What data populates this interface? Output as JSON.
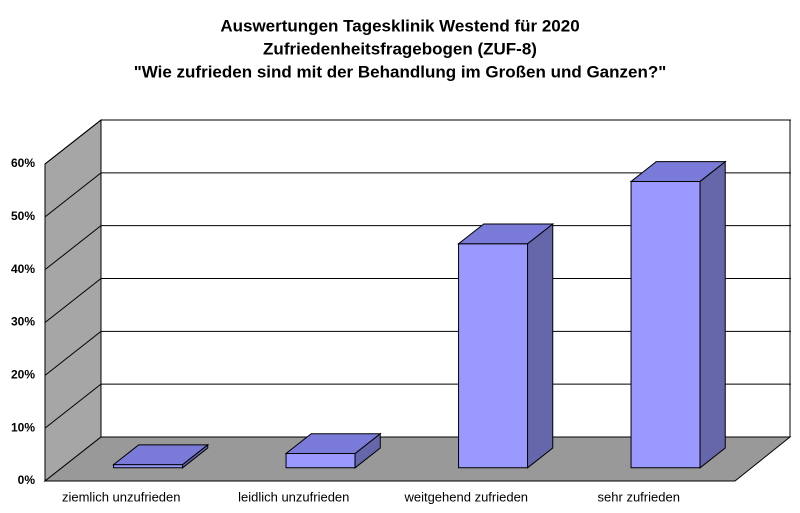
{
  "chart_data": {
    "type": "bar3d",
    "title": [
      "Auswertungen Tagesklinik Westend für 2020",
      "Zufriedenheitsfragebogen (ZUF-8)",
      "\"Wie zufrieden sind mit der Behandlung im Großen und Ganzen?\""
    ],
    "categories": [
      "ziemlich unzufrieden",
      "leidlich unzufrieden",
      "weitgehend zufrieden",
      "sehr zufrieden"
    ],
    "values": [
      0.6,
      2.7,
      42.4,
      54.2
    ],
    "color": "#9999ff",
    "ylim": [
      0,
      60
    ],
    "yticks": [
      {
        "value": 0,
        "label": "0%"
      },
      {
        "value": 10,
        "label": "10%"
      },
      {
        "value": 20,
        "label": "20%"
      },
      {
        "value": 30,
        "label": "30%"
      },
      {
        "value": 40,
        "label": "40%"
      },
      {
        "value": 50,
        "label": "50%"
      },
      {
        "value": 60,
        "label": "60%"
      }
    ],
    "grid": true
  }
}
